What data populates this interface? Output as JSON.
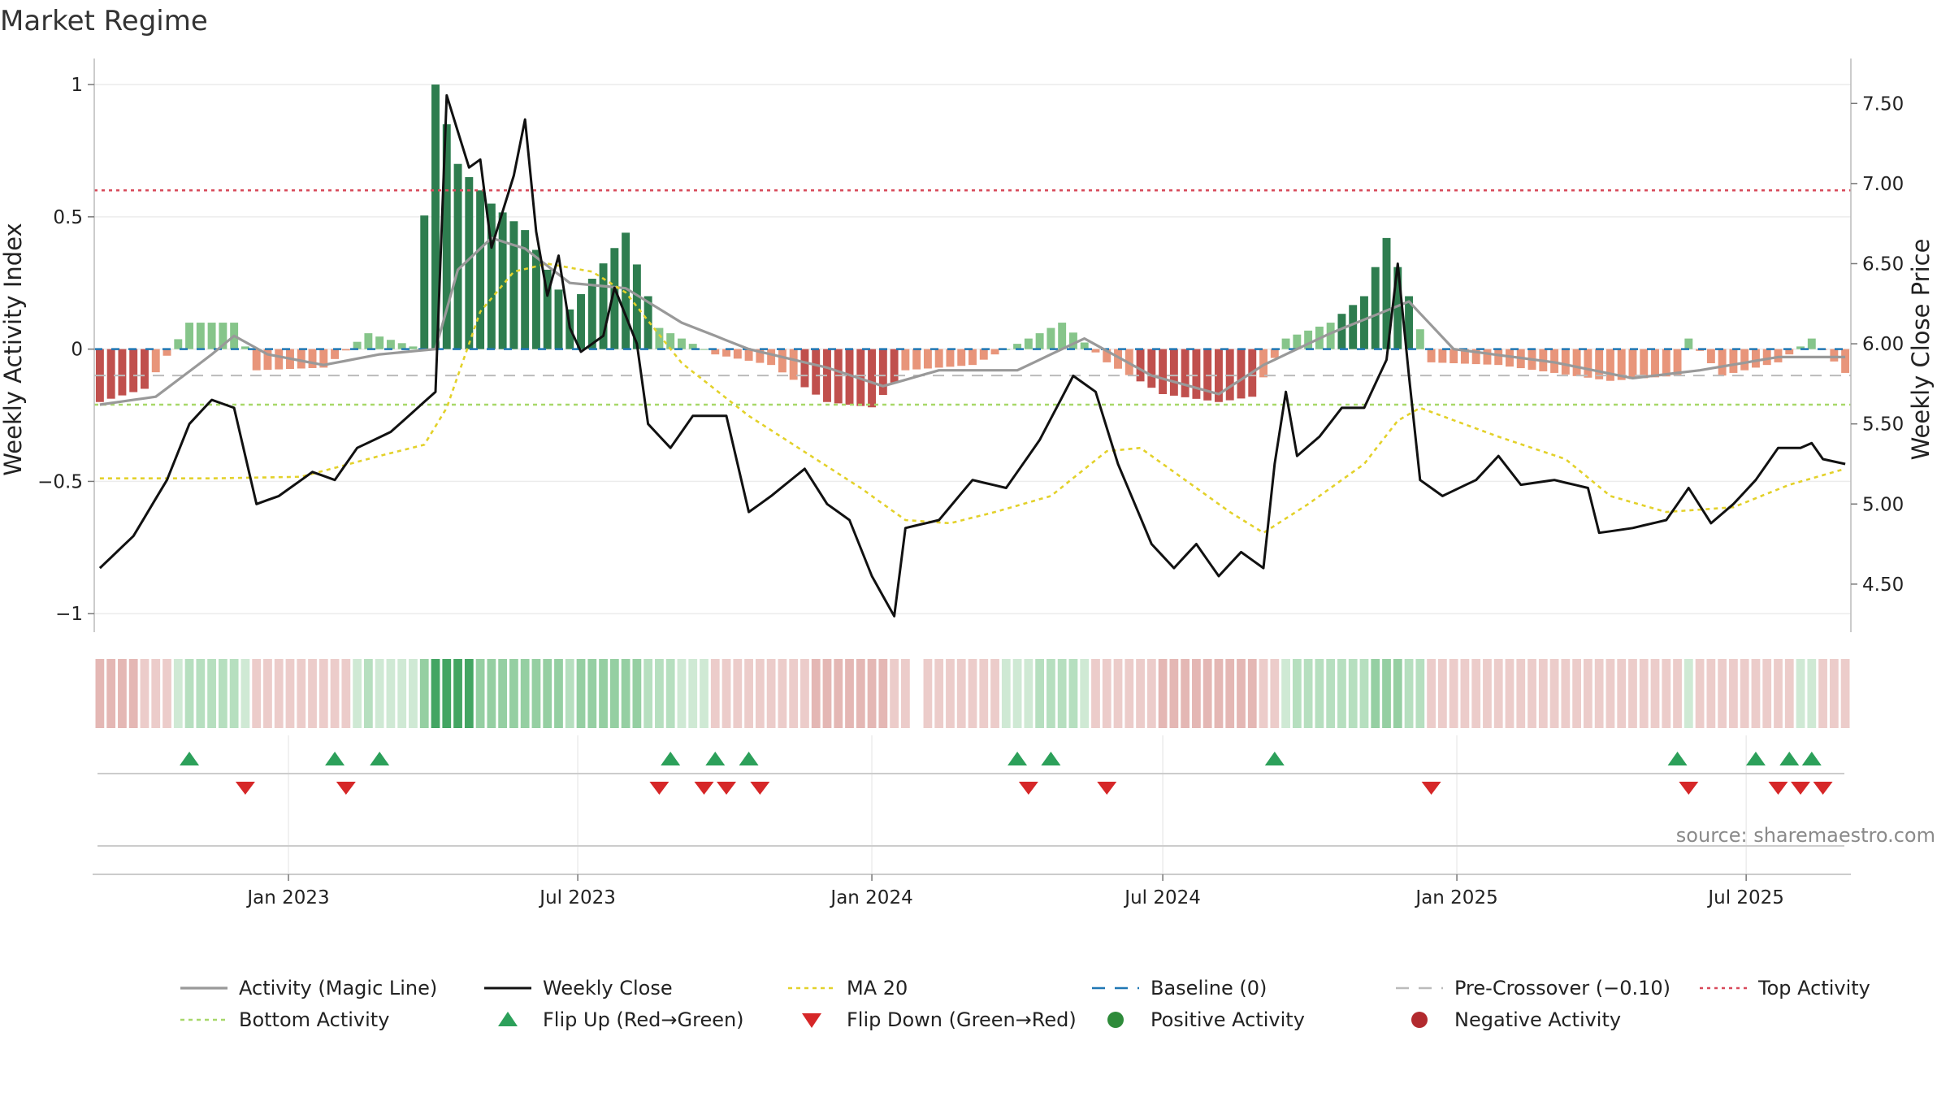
{
  "title": "Market Regime",
  "source": "source: sharemaestro.com",
  "colors": {
    "strong_pos": "#2e7d4f",
    "weak_pos": "#86c58a",
    "strong_neg": "#c0504d",
    "weak_neg": "#e8957a",
    "magic_line": "#999999",
    "close": "#111111",
    "ma20": "#e3d12a",
    "baseline": "#1f77b4",
    "pre_crossover": "#bbbbbb",
    "top_activity": "#d84a5a",
    "bottom_activity": "#a8d86a",
    "flip_up": "#2ca05a",
    "flip_down": "#d62728"
  },
  "chart_data": {
    "type": "bar",
    "title": "Market Regime",
    "ylabel": "Weekly Activity Index",
    "ylabel_right": "Weekly Close Price",
    "ylim": [
      -1.07,
      1.08
    ],
    "ylim_right": [
      4.2,
      7.75
    ],
    "yticks": [
      {
        "v": 1,
        "label": "1"
      },
      {
        "v": 0.5,
        "label": "0.5"
      },
      {
        "v": 0,
        "label": "0"
      },
      {
        "v": -0.5,
        "label": "−0.5"
      },
      {
        "v": -1,
        "label": "−1"
      }
    ],
    "yticks_right": [
      {
        "v": 7.5,
        "label": "7.50"
      },
      {
        "v": 7.0,
        "label": "7.00"
      },
      {
        "v": 6.5,
        "label": "6.50"
      },
      {
        "v": 6.0,
        "label": "6.00"
      },
      {
        "v": 5.5,
        "label": "5.50"
      },
      {
        "v": 5.0,
        "label": "5.00"
      },
      {
        "v": 4.5,
        "label": "4.50"
      }
    ],
    "start_date": "2022-09-05",
    "weeks": 157,
    "xticks": [
      {
        "date": "2023-01-01",
        "label": "Jan 2023"
      },
      {
        "date": "2023-07-01",
        "label": "Jul 2023"
      },
      {
        "date": "2024-01-01",
        "label": "Jan 2024"
      },
      {
        "date": "2024-07-01",
        "label": "Jul 2024"
      },
      {
        "date": "2025-01-01",
        "label": "Jan 2025"
      },
      {
        "date": "2025-07-01",
        "label": "Jul 2025"
      }
    ],
    "top_activity": 0.6,
    "bottom_activity": -0.21,
    "pre_crossover": -0.1,
    "baseline": 0,
    "activity_keys": [
      {
        "w": 0,
        "v": -0.2
      },
      {
        "w": 4,
        "v": -0.15
      },
      {
        "w": 8,
        "v": 0.1
      },
      {
        "w": 12,
        "v": 0.1
      },
      {
        "w": 14,
        "v": -0.08
      },
      {
        "w": 20,
        "v": -0.07
      },
      {
        "w": 24,
        "v": 0.06
      },
      {
        "w": 28,
        "v": 0.01
      },
      {
        "w": 30,
        "v": 1.0
      },
      {
        "w": 32,
        "v": 0.7
      },
      {
        "w": 35,
        "v": 0.55
      },
      {
        "w": 38,
        "v": 0.45
      },
      {
        "w": 42,
        "v": 0.15
      },
      {
        "w": 47,
        "v": 0.44
      },
      {
        "w": 50,
        "v": 0.08
      },
      {
        "w": 55,
        "v": -0.02
      },
      {
        "w": 60,
        "v": -0.06
      },
      {
        "w": 65,
        "v": -0.2
      },
      {
        "w": 69,
        "v": -0.22
      },
      {
        "w": 72,
        "v": -0.08
      },
      {
        "w": 78,
        "v": -0.06
      },
      {
        "w": 86,
        "v": 0.1
      },
      {
        "w": 90,
        "v": -0.05
      },
      {
        "w": 95,
        "v": -0.17
      },
      {
        "w": 100,
        "v": -0.2
      },
      {
        "w": 103,
        "v": -0.18
      },
      {
        "w": 106,
        "v": 0.04
      },
      {
        "w": 110,
        "v": 0.1
      },
      {
        "w": 113,
        "v": 0.2
      },
      {
        "w": 115,
        "v": 0.42
      },
      {
        "w": 117,
        "v": 0.2
      },
      {
        "w": 119,
        "v": -0.05
      },
      {
        "w": 125,
        "v": -0.06
      },
      {
        "w": 135,
        "v": -0.12
      },
      {
        "w": 141,
        "v": -0.1
      },
      {
        "w": 142,
        "v": 0.04
      },
      {
        "w": 145,
        "v": -0.1
      },
      {
        "w": 150,
        "v": -0.05
      },
      {
        "w": 153,
        "v": 0.04
      },
      {
        "w": 156,
        "v": -0.09
      }
    ],
    "magic_keys": [
      {
        "w": 0,
        "v": -0.21
      },
      {
        "w": 5,
        "v": -0.18
      },
      {
        "w": 10,
        "v": -0.02
      },
      {
        "w": 12,
        "v": 0.05
      },
      {
        "w": 15,
        "v": -0.02
      },
      {
        "w": 20,
        "v": -0.06
      },
      {
        "w": 25,
        "v": -0.02
      },
      {
        "w": 30,
        "v": 0.0
      },
      {
        "w": 32,
        "v": 0.3
      },
      {
        "w": 35,
        "v": 0.42
      },
      {
        "w": 38,
        "v": 0.38
      },
      {
        "w": 42,
        "v": 0.25
      },
      {
        "w": 47,
        "v": 0.23
      },
      {
        "w": 52,
        "v": 0.1
      },
      {
        "w": 58,
        "v": 0.0
      },
      {
        "w": 65,
        "v": -0.07
      },
      {
        "w": 70,
        "v": -0.14
      },
      {
        "w": 75,
        "v": -0.08
      },
      {
        "w": 82,
        "v": -0.08
      },
      {
        "w": 88,
        "v": 0.04
      },
      {
        "w": 94,
        "v": -0.1
      },
      {
        "w": 100,
        "v": -0.17
      },
      {
        "w": 104,
        "v": -0.06
      },
      {
        "w": 110,
        "v": 0.06
      },
      {
        "w": 117,
        "v": 0.18
      },
      {
        "w": 121,
        "v": 0.0
      },
      {
        "w": 130,
        "v": -0.05
      },
      {
        "w": 137,
        "v": -0.11
      },
      {
        "w": 143,
        "v": -0.08
      },
      {
        "w": 150,
        "v": -0.03
      },
      {
        "w": 156,
        "v": -0.03
      }
    ],
    "close_keys": [
      {
        "w": 0,
        "v": 4.6
      },
      {
        "w": 3,
        "v": 4.8
      },
      {
        "w": 6,
        "v": 5.15
      },
      {
        "w": 8,
        "v": 5.5
      },
      {
        "w": 10,
        "v": 5.65
      },
      {
        "w": 12,
        "v": 5.6
      },
      {
        "w": 14,
        "v": 5.0
      },
      {
        "w": 16,
        "v": 5.05
      },
      {
        "w": 19,
        "v": 5.2
      },
      {
        "w": 21,
        "v": 5.15
      },
      {
        "w": 23,
        "v": 5.35
      },
      {
        "w": 26,
        "v": 5.45
      },
      {
        "w": 30,
        "v": 5.7
      },
      {
        "w": 31,
        "v": 7.55
      },
      {
        "w": 33,
        "v": 7.1
      },
      {
        "w": 34,
        "v": 7.15
      },
      {
        "w": 35,
        "v": 6.6
      },
      {
        "w": 37,
        "v": 7.05
      },
      {
        "w": 38,
        "v": 7.4
      },
      {
        "w": 39,
        "v": 6.7
      },
      {
        "w": 40,
        "v": 6.3
      },
      {
        "w": 41,
        "v": 6.55
      },
      {
        "w": 42,
        "v": 6.1
      },
      {
        "w": 43,
        "v": 5.95
      },
      {
        "w": 45,
        "v": 6.05
      },
      {
        "w": 46,
        "v": 6.35
      },
      {
        "w": 48,
        "v": 6.0
      },
      {
        "w": 49,
        "v": 5.5
      },
      {
        "w": 51,
        "v": 5.35
      },
      {
        "w": 53,
        "v": 5.55
      },
      {
        "w": 56,
        "v": 5.55
      },
      {
        "w": 58,
        "v": 4.95
      },
      {
        "w": 60,
        "v": 5.05
      },
      {
        "w": 63,
        "v": 5.22
      },
      {
        "w": 65,
        "v": 5.0
      },
      {
        "w": 67,
        "v": 4.9
      },
      {
        "w": 69,
        "v": 4.55
      },
      {
        "w": 71,
        "v": 4.3
      },
      {
        "w": 72,
        "v": 4.85
      },
      {
        "w": 75,
        "v": 4.9
      },
      {
        "w": 78,
        "v": 5.15
      },
      {
        "w": 81,
        "v": 5.1
      },
      {
        "w": 84,
        "v": 5.4
      },
      {
        "w": 87,
        "v": 5.8
      },
      {
        "w": 89,
        "v": 5.7
      },
      {
        "w": 91,
        "v": 5.25
      },
      {
        "w": 94,
        "v": 4.75
      },
      {
        "w": 96,
        "v": 4.6
      },
      {
        "w": 98,
        "v": 4.75
      },
      {
        "w": 100,
        "v": 4.55
      },
      {
        "w": 102,
        "v": 4.7
      },
      {
        "w": 104,
        "v": 4.6
      },
      {
        "w": 105,
        "v": 5.25
      },
      {
        "w": 106,
        "v": 5.7
      },
      {
        "w": 107,
        "v": 5.3
      },
      {
        "w": 109,
        "v": 5.42
      },
      {
        "w": 111,
        "v": 5.6
      },
      {
        "w": 113,
        "v": 5.6
      },
      {
        "w": 115,
        "v": 5.9
      },
      {
        "w": 116,
        "v": 6.5
      },
      {
        "w": 117,
        "v": 5.8
      },
      {
        "w": 118,
        "v": 5.15
      },
      {
        "w": 120,
        "v": 5.05
      },
      {
        "w": 123,
        "v": 5.15
      },
      {
        "w": 125,
        "v": 5.3
      },
      {
        "w": 127,
        "v": 5.12
      },
      {
        "w": 130,
        "v": 5.15
      },
      {
        "w": 133,
        "v": 5.1
      },
      {
        "w": 134,
        "v": 4.82
      },
      {
        "w": 137,
        "v": 4.85
      },
      {
        "w": 140,
        "v": 4.9
      },
      {
        "w": 142,
        "v": 5.1
      },
      {
        "w": 144,
        "v": 4.88
      },
      {
        "w": 146,
        "v": 5.0
      },
      {
        "w": 148,
        "v": 5.15
      },
      {
        "w": 150,
        "v": 5.35
      },
      {
        "w": 152,
        "v": 5.35
      },
      {
        "w": 153,
        "v": 5.38
      },
      {
        "w": 154,
        "v": 5.28
      },
      {
        "w": 156,
        "v": 5.25
      }
    ],
    "ma20_keys": [
      {
        "w": 0,
        "v": 5.16
      },
      {
        "w": 10,
        "v": 5.16
      },
      {
        "w": 18,
        "v": 5.17
      },
      {
        "w": 25,
        "v": 5.3
      },
      {
        "w": 29,
        "v": 5.37
      },
      {
        "w": 31,
        "v": 5.6
      },
      {
        "w": 34,
        "v": 6.2
      },
      {
        "w": 37,
        "v": 6.45
      },
      {
        "w": 40,
        "v": 6.5
      },
      {
        "w": 44,
        "v": 6.45
      },
      {
        "w": 47,
        "v": 6.32
      },
      {
        "w": 52,
        "v": 5.88
      },
      {
        "w": 58,
        "v": 5.55
      },
      {
        "w": 64,
        "v": 5.28
      },
      {
        "w": 68,
        "v": 5.1
      },
      {
        "w": 72,
        "v": 4.9
      },
      {
        "w": 76,
        "v": 4.88
      },
      {
        "w": 80,
        "v": 4.95
      },
      {
        "w": 85,
        "v": 5.05
      },
      {
        "w": 90,
        "v": 5.33
      },
      {
        "w": 93,
        "v": 5.35
      },
      {
        "w": 97,
        "v": 5.15
      },
      {
        "w": 101,
        "v": 4.95
      },
      {
        "w": 104,
        "v": 4.82
      },
      {
        "w": 108,
        "v": 5.0
      },
      {
        "w": 113,
        "v": 5.25
      },
      {
        "w": 116,
        "v": 5.52
      },
      {
        "w": 118,
        "v": 5.6
      },
      {
        "w": 125,
        "v": 5.42
      },
      {
        "w": 131,
        "v": 5.28
      },
      {
        "w": 135,
        "v": 5.05
      },
      {
        "w": 140,
        "v": 4.95
      },
      {
        "w": 146,
        "v": 4.98
      },
      {
        "w": 151,
        "v": 5.12
      },
      {
        "w": 156,
        "v": 5.22
      }
    ],
    "flip_up_weeks": [
      8,
      21,
      25,
      51,
      55,
      58,
      82,
      85,
      105,
      141,
      148,
      151,
      153
    ],
    "flip_down_weeks": [
      13,
      22,
      50,
      54,
      56,
      59,
      83,
      90,
      119,
      142,
      150,
      152,
      154
    ],
    "regime_gap_week": 73,
    "legend": [
      {
        "key": "magic",
        "label": "Activity (Magic Line)"
      },
      {
        "key": "close",
        "label": "Weekly Close"
      },
      {
        "key": "ma20",
        "label": "MA 20"
      },
      {
        "key": "baseline",
        "label": "Baseline (0)"
      },
      {
        "key": "pre",
        "label": "Pre-Crossover (−0.10)"
      },
      {
        "key": "top",
        "label": "Top Activity"
      },
      {
        "key": "bottom",
        "label": "Bottom Activity"
      },
      {
        "key": "flipup",
        "label": "Flip Up (Red→Green)"
      },
      {
        "key": "flipdown",
        "label": "Flip Down (Green→Red)"
      },
      {
        "key": "posdot",
        "label": "Positive Activity"
      },
      {
        "key": "negdot",
        "label": "Negative Activity"
      }
    ]
  }
}
